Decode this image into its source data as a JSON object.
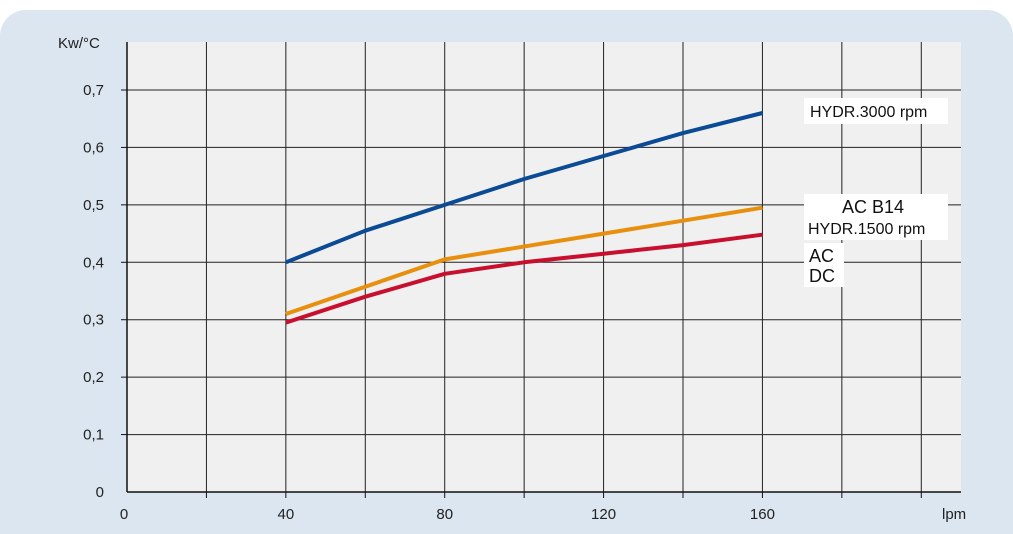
{
  "chart_data": {
    "type": "line",
    "ylabel": "Kw/°C",
    "xlabel": "lpm",
    "xlim": [
      0,
      210
    ],
    "ylim": [
      0,
      0.8
    ],
    "x_ticks": [
      "0",
      "40",
      "80",
      "120",
      "160"
    ],
    "y_ticks": [
      "0",
      "0,1",
      "0,2",
      "0,3",
      "0,4",
      "0,5",
      "0,6",
      "0,7"
    ],
    "grid": true,
    "series": [
      {
        "name": "HYDR.3000 rpm",
        "color": "#0b4a94",
        "x": [
          40,
          60,
          80,
          100,
          120,
          140,
          160
        ],
        "y": [
          0.4,
          0.455,
          0.5,
          0.545,
          0.585,
          0.625,
          0.66
        ]
      },
      {
        "name": "AC B14",
        "color": "#e8900e",
        "x": [
          40,
          80,
          120,
          160
        ],
        "y": [
          0.31,
          0.405,
          0.45,
          0.495
        ]
      },
      {
        "name": "AC",
        "color": "#c8102e",
        "x": [
          40,
          60,
          80,
          100,
          120,
          140,
          160
        ],
        "y": [
          0.295,
          0.34,
          0.38,
          0.4,
          0.415,
          0.43,
          0.448
        ]
      }
    ],
    "labels": [
      {
        "text": "HYDR.3000 rpm"
      },
      {
        "text": "AC B14"
      },
      {
        "text": "HYDR.1500 rpm"
      },
      {
        "text": "AC"
      },
      {
        "text": "DC"
      }
    ]
  }
}
